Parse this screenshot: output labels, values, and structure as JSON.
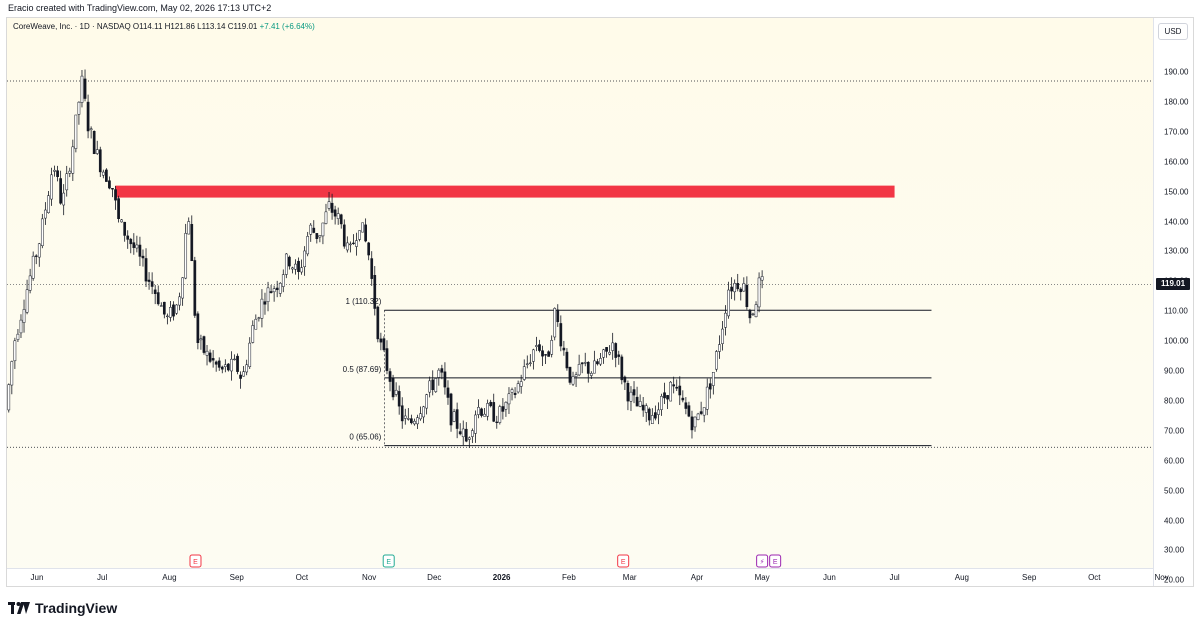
{
  "header": {
    "caption": "Eracio created with TradingView.com, May 02, 2026 17:13 UTC+2"
  },
  "legend": {
    "symbol": "CoreWeave, Inc. · 1D · NASDAQ",
    "open": "O114.11",
    "high": "H121.86",
    "low": "L113.14",
    "close": "C119.01",
    "change": "+7.41 (+6.64%)"
  },
  "currency_button": "USD",
  "last_price_label": "119.01",
  "footer": {
    "brand": "TradingView"
  },
  "colors": {
    "up": "#ffffff",
    "down": "#131722",
    "zone": "#f23645",
    "background": "#fffbea",
    "earnings_red": "#f23645",
    "earnings_teal": "#22ab94",
    "earnings_purple": "#9c27b0"
  },
  "chart_data": {
    "type": "candlestick",
    "price_axis": {
      "ticks": [
        "190.00",
        "180.00",
        "170.00",
        "160.00",
        "150.00",
        "140.00",
        "130.00",
        "120.00",
        "110.00",
        "100.00",
        "90.00",
        "80.00",
        "70.00",
        "60.00",
        "50.00",
        "40.00",
        "30.00",
        "20.00"
      ],
      "range": [
        20,
        197
      ]
    },
    "time_axis": {
      "labels": [
        {
          "label": "Jun",
          "month": "2025-06"
        },
        {
          "label": "Jul",
          "month": "2025-07"
        },
        {
          "label": "Aug",
          "month": "2025-08"
        },
        {
          "label": "Sep",
          "month": "2025-09"
        },
        {
          "label": "Oct",
          "month": "2025-10"
        },
        {
          "label": "Nov",
          "month": "2025-11"
        },
        {
          "label": "Dec",
          "month": "2025-12"
        },
        {
          "label": "2026",
          "month": "2026-01",
          "bold": true
        },
        {
          "label": "Feb",
          "month": "2026-02"
        },
        {
          "label": "Mar",
          "month": "2026-03"
        },
        {
          "label": "Apr",
          "month": "2026-04"
        },
        {
          "label": "May",
          "month": "2026-05"
        },
        {
          "label": "Jun",
          "month": "2026-06"
        },
        {
          "label": "Jul",
          "month": "2026-07"
        },
        {
          "label": "Aug",
          "month": "2026-08"
        },
        {
          "label": "Sep",
          "month": "2026-09"
        },
        {
          "label": "Oct",
          "month": "2026-10"
        },
        {
          "label": "Nov",
          "month": "2026-11"
        }
      ]
    },
    "price_path": [
      [
        "2025-05-19",
        77
      ],
      [
        "2025-05-23",
        100
      ],
      [
        "2025-05-29",
        118
      ],
      [
        "2025-06-04",
        135
      ],
      [
        "2025-06-10",
        160
      ],
      [
        "2025-06-14",
        145
      ],
      [
        "2025-06-19",
        166
      ],
      [
        "2025-06-23",
        187
      ],
      [
        "2025-06-26",
        172
      ],
      [
        "2025-07-01",
        160
      ],
      [
        "2025-07-07",
        152
      ],
      [
        "2025-07-10",
        140
      ],
      [
        "2025-07-14",
        135
      ],
      [
        "2025-07-18",
        130
      ],
      [
        "2025-07-23",
        122
      ],
      [
        "2025-07-28",
        115
      ],
      [
        "2025-08-01",
        107
      ],
      [
        "2025-08-06",
        112
      ],
      [
        "2025-08-08",
        120
      ],
      [
        "2025-08-11",
        145
      ],
      [
        "2025-08-13",
        122
      ],
      [
        "2025-08-15",
        100
      ],
      [
        "2025-08-20",
        95
      ],
      [
        "2025-08-26",
        90
      ],
      [
        "2025-09-02",
        92
      ],
      [
        "2025-09-05",
        87
      ],
      [
        "2025-09-10",
        105
      ],
      [
        "2025-09-15",
        115
      ],
      [
        "2025-09-22",
        120
      ],
      [
        "2025-09-26",
        128
      ],
      [
        "2025-10-01",
        122
      ],
      [
        "2025-10-06",
        138
      ],
      [
        "2025-10-10",
        135
      ],
      [
        "2025-10-15",
        145
      ],
      [
        "2025-10-20",
        140
      ],
      [
        "2025-10-24",
        128
      ],
      [
        "2025-10-29",
        140
      ],
      [
        "2025-11-02",
        130
      ],
      [
        "2025-11-04",
        118
      ],
      [
        "2025-11-07",
        100
      ],
      [
        "2025-11-12",
        88
      ],
      [
        "2025-11-17",
        75
      ],
      [
        "2025-11-21",
        72
      ],
      [
        "2025-11-26",
        78
      ],
      [
        "2025-12-01",
        85
      ],
      [
        "2025-12-05",
        90
      ],
      [
        "2025-12-10",
        75
      ],
      [
        "2025-12-15",
        70
      ],
      [
        "2025-12-17",
        66
      ],
      [
        "2025-12-22",
        78
      ],
      [
        "2026-01-01",
        75
      ],
      [
        "2026-01-08",
        82
      ],
      [
        "2026-01-14",
        92
      ],
      [
        "2026-01-19",
        100
      ],
      [
        "2026-01-23",
        92
      ],
      [
        "2026-01-27",
        110
      ],
      [
        "2026-01-30",
        100
      ],
      [
        "2026-02-04",
        85
      ],
      [
        "2026-02-09",
        92
      ],
      [
        "2026-02-13",
        90
      ],
      [
        "2026-02-19",
        95
      ],
      [
        "2026-02-23",
        100
      ],
      [
        "2026-02-27",
        88
      ],
      [
        "2026-03-02",
        82
      ],
      [
        "2026-03-06",
        78
      ],
      [
        "2026-03-11",
        75
      ],
      [
        "2026-03-16",
        78
      ],
      [
        "2026-03-21",
        85
      ],
      [
        "2026-03-26",
        80
      ],
      [
        "2026-04-01",
        72
      ],
      [
        "2026-04-06",
        80
      ],
      [
        "2026-04-10",
        90
      ],
      [
        "2026-04-14",
        105
      ],
      [
        "2026-04-17",
        118
      ],
      [
        "2026-04-22",
        120
      ],
      [
        "2026-04-24",
        118
      ],
      [
        "2026-04-27",
        108
      ],
      [
        "2026-04-29",
        112
      ],
      [
        "2026-05-01",
        119
      ]
    ],
    "last_price": 119.01,
    "annotations": {
      "resistance_zone": {
        "from": "2025-07-07",
        "to": "2026-07-01",
        "low": 148,
        "high": 152
      },
      "horizontal_lines": [
        {
          "from": "2025-05-15",
          "to": "2026-11-30",
          "price": 187.0
        },
        {
          "from": "2025-05-15",
          "to": "2026-11-30",
          "price": 64.5
        }
      ],
      "fibonacci": [
        {
          "label": "1 (110.32)",
          "price": 110.32
        },
        {
          "label": "0.5 (87.69)",
          "price": 87.69
        },
        {
          "label": "0 (65.06)",
          "price": 65.06
        }
      ],
      "fib_range": {
        "from": "2025-11-08",
        "to": "2026-07-18"
      },
      "earnings": [
        {
          "date": "2025-08-13",
          "label": "E",
          "color": "#f23645"
        },
        {
          "date": "2025-11-10",
          "label": "E",
          "color": "#22ab94"
        },
        {
          "date": "2026-02-26",
          "label": "E",
          "color": "#f23645"
        },
        {
          "date": "2026-05-01",
          "label": "⚡",
          "color": "#9c27b0"
        },
        {
          "date": "2026-05-07",
          "label": "E",
          "color": "#9c27b0"
        }
      ]
    }
  }
}
